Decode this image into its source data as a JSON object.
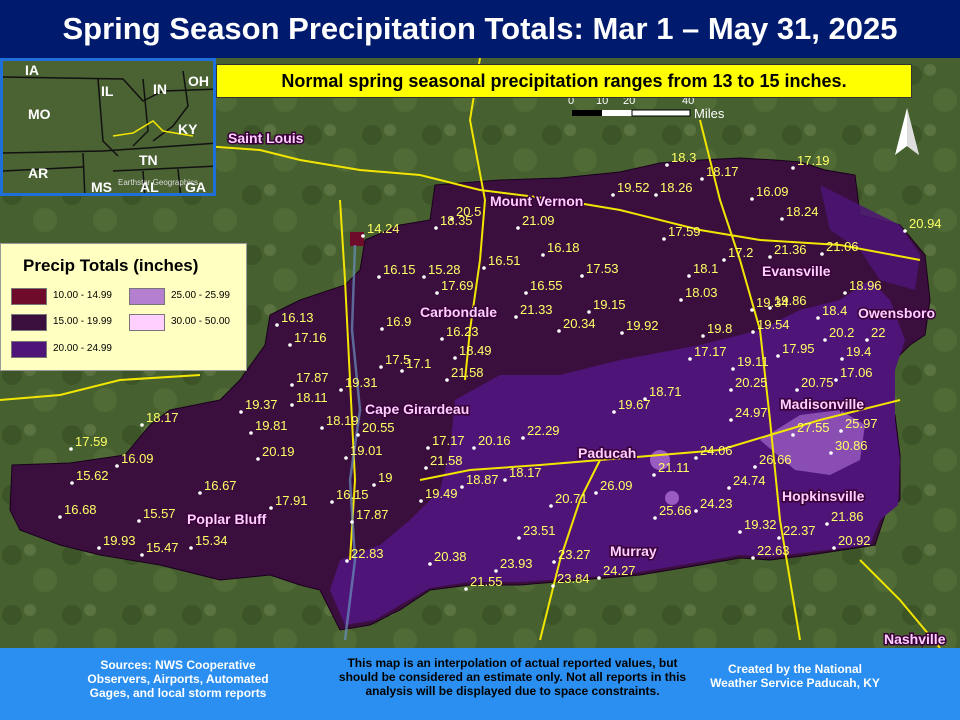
{
  "title": "Spring Season Precipitation Totals: Mar 1 – May 31, 2025",
  "normal_note": "Normal spring seasonal precipitation ranges from 13 to 15 inches.",
  "scale_bar": {
    "ticks": [
      "0",
      "10",
      "20",
      "40"
    ],
    "unit": "Miles"
  },
  "inset": {
    "states": [
      "IA",
      "IL",
      "IN",
      "OH",
      "MO",
      "KY",
      "AR",
      "TN",
      "MS",
      "AL",
      "GA"
    ],
    "credit": "Earthstar Geographics"
  },
  "legend": {
    "title": "Precip Totals (inches)",
    "items": [
      {
        "label": "10.00 - 14.99",
        "color": "#6e0a2a"
      },
      {
        "label": "15.00 - 19.99",
        "color": "#3a0f3e"
      },
      {
        "label": "20.00 - 24.99",
        "color": "#4e1477"
      },
      {
        "label": "25.00 - 25.99",
        "color": "#b57fd0"
      },
      {
        "label": "30.00 - 50.00",
        "color": "#ffd0ff"
      }
    ]
  },
  "cities": [
    "Mount Vernon",
    "Saint Louis",
    "Evansville",
    "Owensboro",
    "Carbondale",
    "Cape Girardeau",
    "Madisonville",
    "Paducah",
    "Hopkinsville",
    "Poplar Bluff",
    "Murray",
    "Nashville"
  ],
  "values": [
    "18.3",
    "18.17",
    "17.19",
    "19.52",
    "18.26",
    "16.09",
    "18.24",
    "20.94",
    "18.35",
    "20.5",
    "21.09",
    "14.24",
    "17.59",
    "17.2",
    "21.36",
    "21.06",
    "16.18",
    "16.15",
    "15.28",
    "16.51",
    "17.53",
    "18.1",
    "16.55",
    "17.69",
    "21.33",
    "18.03",
    "18.96",
    "19.15",
    "19.34",
    "19.86",
    "18.4",
    "16.13",
    "16.9",
    "20.34",
    "19.92",
    "19.54",
    "20.2",
    "22",
    "17.16",
    "16.23",
    "19.8",
    "17.5",
    "17.1",
    "18.49",
    "17.17",
    "19.11",
    "17.95",
    "19.4",
    "17.06",
    "17.87",
    "19.31",
    "21.58",
    "20.25",
    "20.75",
    "19.37",
    "18.11",
    "18.71",
    "19.67",
    "18.17",
    "19.81",
    "18.19",
    "24.97",
    "27.55",
    "25.97",
    "17.59",
    "20.55",
    "17.17",
    "20.16",
    "22.29",
    "30.86",
    "16.09",
    "20.19",
    "19.01",
    "21.58",
    "24.06",
    "26.66",
    "15.62",
    "21.11",
    "19",
    "18.17",
    "24.74",
    "16.67",
    "18.87",
    "26.09",
    "19.49",
    "20.71",
    "17.91",
    "16.15",
    "25.66",
    "24.23",
    "16.68",
    "15.57",
    "17.87",
    "23.51",
    "19.32",
    "21.86",
    "22.37",
    "19.93",
    "15.47",
    "15.34",
    "22.83",
    "20.38",
    "23.93",
    "23.27",
    "20.92",
    "22.63",
    "24.27",
    "21.55",
    "23.84"
  ],
  "footer": {
    "sources": "Sources: NWS Cooperative Observers, Airports, Automated Gages, and local storm reports",
    "disclaimer": "This map is an interpolation of actual reported values, but should be considered an estimate only. Not all reports in this analysis will be displayed due to space constraints.",
    "credit": "Created by the National Weather Service Paducah, KY"
  },
  "colors": {
    "title_bg": "#001a6e",
    "note_bg": "#ffff00",
    "footer_bg": "#2a8ff0",
    "value_text": "#ffff66",
    "city_text": "#ffd0ff"
  }
}
